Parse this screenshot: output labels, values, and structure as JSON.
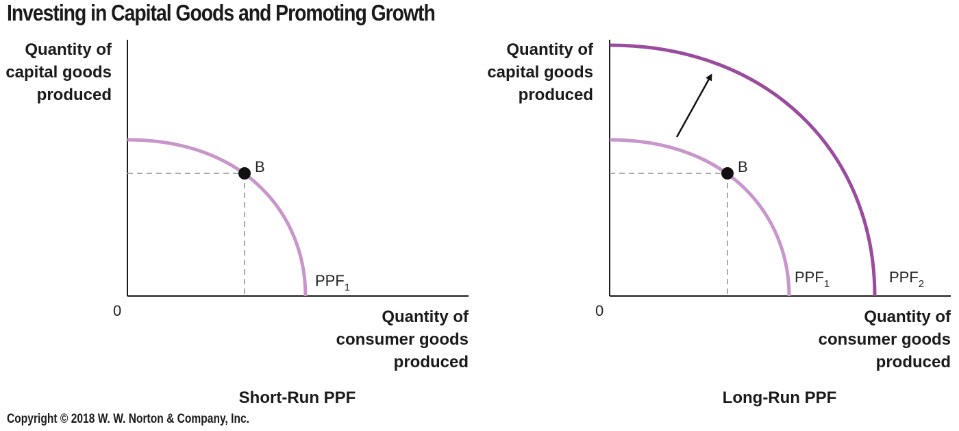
{
  "title": "Investing in Capital Goods and Promoting Growth",
  "copyright": "Copyright © 2018 W. W. Norton & Company, Inc.",
  "colors": {
    "ppf1": "#c896cb",
    "ppf2": "#9a4b9e",
    "axis": "#1a1a1a",
    "guide": "#aaaaaa",
    "point": "#111111"
  },
  "panels": [
    {
      "subtitle": "Short-Run PPF",
      "y_label": [
        "Quantity of",
        "capital goods",
        "produced"
      ],
      "x_label": [
        "Quantity of",
        "consumer goods",
        "produced"
      ],
      "origin_label": "0",
      "point_label": "B",
      "curves": [
        {
          "name": "PPF",
          "subscript": "1"
        }
      ]
    },
    {
      "subtitle": "Long-Run PPF",
      "y_label": [
        "Quantity of",
        "capital goods",
        "produced"
      ],
      "x_label": [
        "Quantity of",
        "consumer goods",
        "produced"
      ],
      "origin_label": "0",
      "point_label": "B",
      "curves": [
        {
          "name": "PPF",
          "subscript": "1"
        },
        {
          "name": "PPF",
          "subscript": "2"
        }
      ],
      "shift_arrow": "outward"
    }
  ]
}
